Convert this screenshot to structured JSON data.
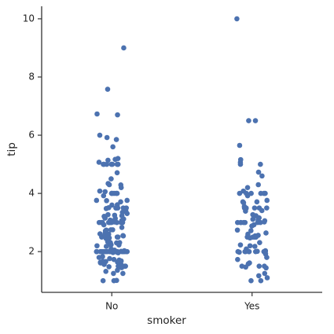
{
  "chart_data": {
    "type": "strip",
    "x_label": "smoker",
    "y_label": "tip",
    "categories": [
      "No",
      "Yes"
    ],
    "color": "#4c72b0",
    "values": [
      [
        1.01,
        1.66,
        3.5,
        3.31,
        3.61,
        4.71,
        2,
        3.12,
        1.96,
        3.23,
        1.71,
        5,
        1.57,
        3,
        3.02,
        3.92,
        1.67,
        3.71,
        3.5,
        3.35,
        4.08,
        2.75,
        2.23,
        7.58,
        3.18,
        2.34,
        2,
        2,
        4.3,
        3,
        1.45,
        2.5,
        3,
        2.45,
        3.27,
        3.6,
        2,
        3.07,
        2.31,
        5,
        2.24,
        2.54,
        3.06,
        1.32,
        5.6,
        3,
        5,
        6,
        2.05,
        3,
        2.5,
        2.6,
        5.2,
        1.56,
        4.34,
        3.51,
        3,
        1.5,
        1.76,
        6.73,
        3.21,
        2,
        1.98,
        3.76,
        2.64,
        3.15,
        2.47,
        1,
        2.01,
        2.09,
        1.97,
        3,
        3.14,
        5,
        2.2,
        1.25,
        3.08,
        4,
        3,
        2.71,
        3,
        3.4,
        1.83,
        5,
        2.03,
        5.17,
        2,
        4,
        5.85,
        3,
        1.5,
        1.64,
        4.06,
        4.29,
        3.76,
        4,
        3,
        1,
        4,
        2.55,
        4,
        3.5,
        5.07,
        1.5,
        1.8,
        2.92,
        2.31,
        1.68,
        2.5,
        2,
        2.52,
        4.2,
        1.48,
        2,
        2,
        2.18,
        1.5,
        2.83,
        1.5,
        2,
        3.25,
        1.25,
        2,
        2,
        2,
        2.75,
        3.5,
        6.7,
        5,
        5,
        2.3,
        1.5,
        1.36,
        1.63,
        1.73,
        2,
        2.5,
        2,
        2.74,
        2,
        2,
        5.14,
        5,
        3.75,
        2.61,
        2,
        3.5,
        2.5,
        2,
        2,
        3,
        3.48,
        2.24,
        4.5,
        1.61,
        9,
        5.92
      ],
      [
        10,
        6.5,
        6.5,
        5.65,
        5.16,
        5.07,
        5,
        5,
        4.73,
        4.3,
        4.2,
        4.08,
        4,
        4,
        4,
        4,
        4,
        3.92,
        3.76,
        3.68,
        3.55,
        3.5,
        3.5,
        3.5,
        3.5,
        3.48,
        3.41,
        3.39,
        3.27,
        3.16,
        3.11,
        3.09,
        3,
        3,
        3,
        3,
        3,
        3,
        2.88,
        2.72,
        2.6,
        2.56,
        2.5,
        2.5,
        2.5,
        2.47,
        2.2,
        2.18,
        2.09,
        2.03,
        2,
        2,
        2,
        2,
        2,
        2,
        2,
        2,
        1.92,
        1.8,
        1.73,
        1.61,
        1.58,
        1.5,
        1.5,
        1.47,
        1.44,
        1.17,
        1.1,
        1,
        1,
        2.01,
        3.02,
        3.5,
        4,
        2.54,
        3.23,
        2.92,
        1.98,
        3.06,
        2.31,
        2.74,
        3.71,
        2,
        4.6,
        1.5,
        2.64,
        2.5,
        2,
        3.71,
        2.23,
        3,
        1.25
      ]
    ],
    "ylim": [
      0.6,
      10.43
    ],
    "yticks": [
      2,
      4,
      6,
      8,
      10
    ]
  }
}
